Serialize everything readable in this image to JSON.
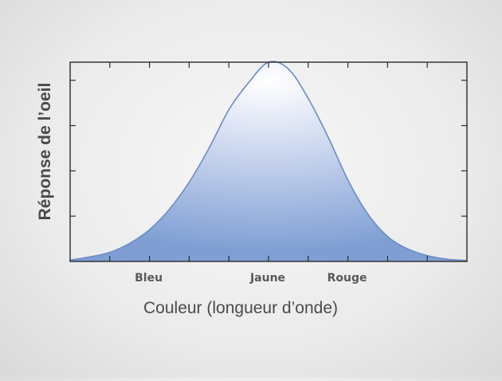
{
  "chart_data": {
    "type": "area",
    "title": "",
    "xlabel": "Couleur (longueur d’onde)",
    "ylabel": "Réponse de l’oeil",
    "xlim": [
      0,
      10
    ],
    "ylim": [
      0,
      4.4
    ],
    "categories": [
      {
        "label": "Bleu",
        "x": 2
      },
      {
        "label": "Jaune",
        "x": 5
      },
      {
        "label": "Rouge",
        "x": 7
      }
    ],
    "x_ticks": [
      1,
      2,
      3,
      4,
      5,
      6,
      7,
      8,
      9
    ],
    "y_ticks": [
      1,
      2,
      3,
      4
    ],
    "series": [
      {
        "x": [
          0,
          0.5,
          1,
          1.5,
          2,
          2.5,
          3,
          3.5,
          4,
          4.5,
          5,
          5.5,
          6,
          6.5,
          7,
          7.5,
          8,
          8.5,
          9,
          9.5,
          10
        ],
        "values": [
          0.03,
          0.1,
          0.2,
          0.4,
          0.7,
          1.15,
          1.75,
          2.5,
          3.35,
          3.95,
          4.4,
          4.25,
          3.6,
          2.75,
          1.8,
          1.05,
          0.55,
          0.28,
          0.13,
          0.05,
          0.02
        ]
      }
    ],
    "grid": false,
    "colors": {
      "fill_light": "#ffffff",
      "fill_mid": "#c8d4ee",
      "fill_dark": "#7f9fd4",
      "stroke": "#6b8cc6",
      "frame": "#2b2b2b"
    }
  }
}
